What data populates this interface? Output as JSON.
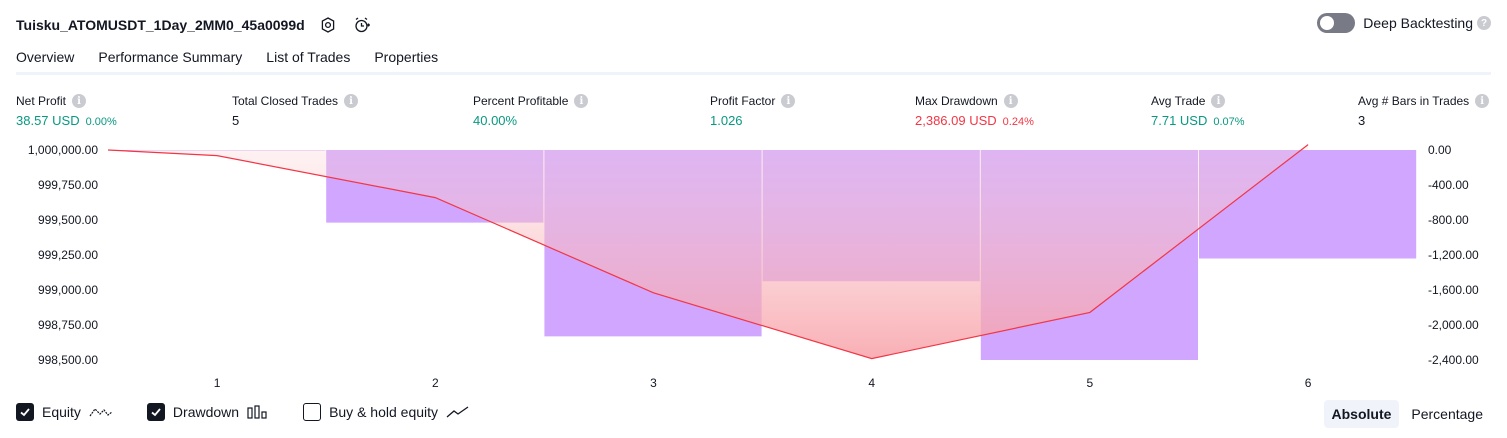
{
  "header": {
    "title": "Tuisku_ATOMUSDT_1Day_2MM0_45a0099d",
    "icons": [
      "settings-icon",
      "alarm-add-icon"
    ]
  },
  "deep_backtesting": {
    "label": "Deep Backtesting",
    "enabled": false
  },
  "tabs": [
    {
      "label": "Overview",
      "active": true
    },
    {
      "label": "Performance Summary",
      "active": false
    },
    {
      "label": "List of Trades",
      "active": false
    },
    {
      "label": "Properties",
      "active": false
    }
  ],
  "metrics": [
    {
      "label": "Net Profit",
      "value": "38.57 USD",
      "sub": "0.00%",
      "tone": "pos"
    },
    {
      "label": "Total Closed Trades",
      "value": "5",
      "sub": "",
      "tone": "neu"
    },
    {
      "label": "Percent Profitable",
      "value": "40.00%",
      "sub": "",
      "tone": "pos"
    },
    {
      "label": "Profit Factor",
      "value": "1.026",
      "sub": "",
      "tone": "pos"
    },
    {
      "label": "Max Drawdown",
      "value": "2,386.09 USD",
      "sub": "0.24%",
      "tone": "neg"
    },
    {
      "label": "Avg Trade",
      "value": "7.71 USD",
      "sub": "0.07%",
      "tone": "pos"
    },
    {
      "label": "Avg # Bars in Trades",
      "value": "3",
      "sub": "",
      "tone": "neu"
    }
  ],
  "chart_data": {
    "type": "line",
    "x": [
      1,
      2,
      3,
      4,
      5,
      6
    ],
    "left_axis": {
      "ticks": [
        "1,000,000.00",
        "999,750.00",
        "999,500.00",
        "999,250.00",
        "999,000.00",
        "998,750.00",
        "998,500.00"
      ],
      "ylim": [
        998500,
        1000000
      ]
    },
    "right_axis": {
      "ticks": [
        "0.00",
        "-400.00",
        "-800.00",
        "-1,200.00",
        "-1,600.00",
        "-2,000.00",
        "-2,400.00"
      ],
      "ylim": [
        -2400,
        0
      ]
    },
    "series": [
      {
        "name": "Equity",
        "x": [
          0.5,
          1,
          2,
          3,
          4,
          5,
          6
        ],
        "values": [
          1000000,
          999960,
          999660,
          998980,
          998510,
          998840,
          1000038.57
        ]
      },
      {
        "name": "Drawdown",
        "values": [
          0,
          -830,
          -2130,
          -1500,
          -2400,
          -1240
        ]
      }
    ],
    "colors": {
      "equity_line": "#f23645",
      "drawdown_bar": "#d1a6ff",
      "grid": "#e0e3eb",
      "axis_text": "#131722"
    },
    "grid": false
  },
  "legend": {
    "items": [
      {
        "label": "Equity",
        "checked": true,
        "icon": "equity-line-icon"
      },
      {
        "label": "Drawdown",
        "checked": true,
        "icon": "drawdown-bars-icon"
      },
      {
        "label": "Buy & hold equity",
        "checked": false,
        "icon": "buy-hold-line-icon"
      }
    ]
  },
  "mode": {
    "options": [
      "Absolute",
      "Percentage"
    ],
    "selected": "Absolute"
  }
}
